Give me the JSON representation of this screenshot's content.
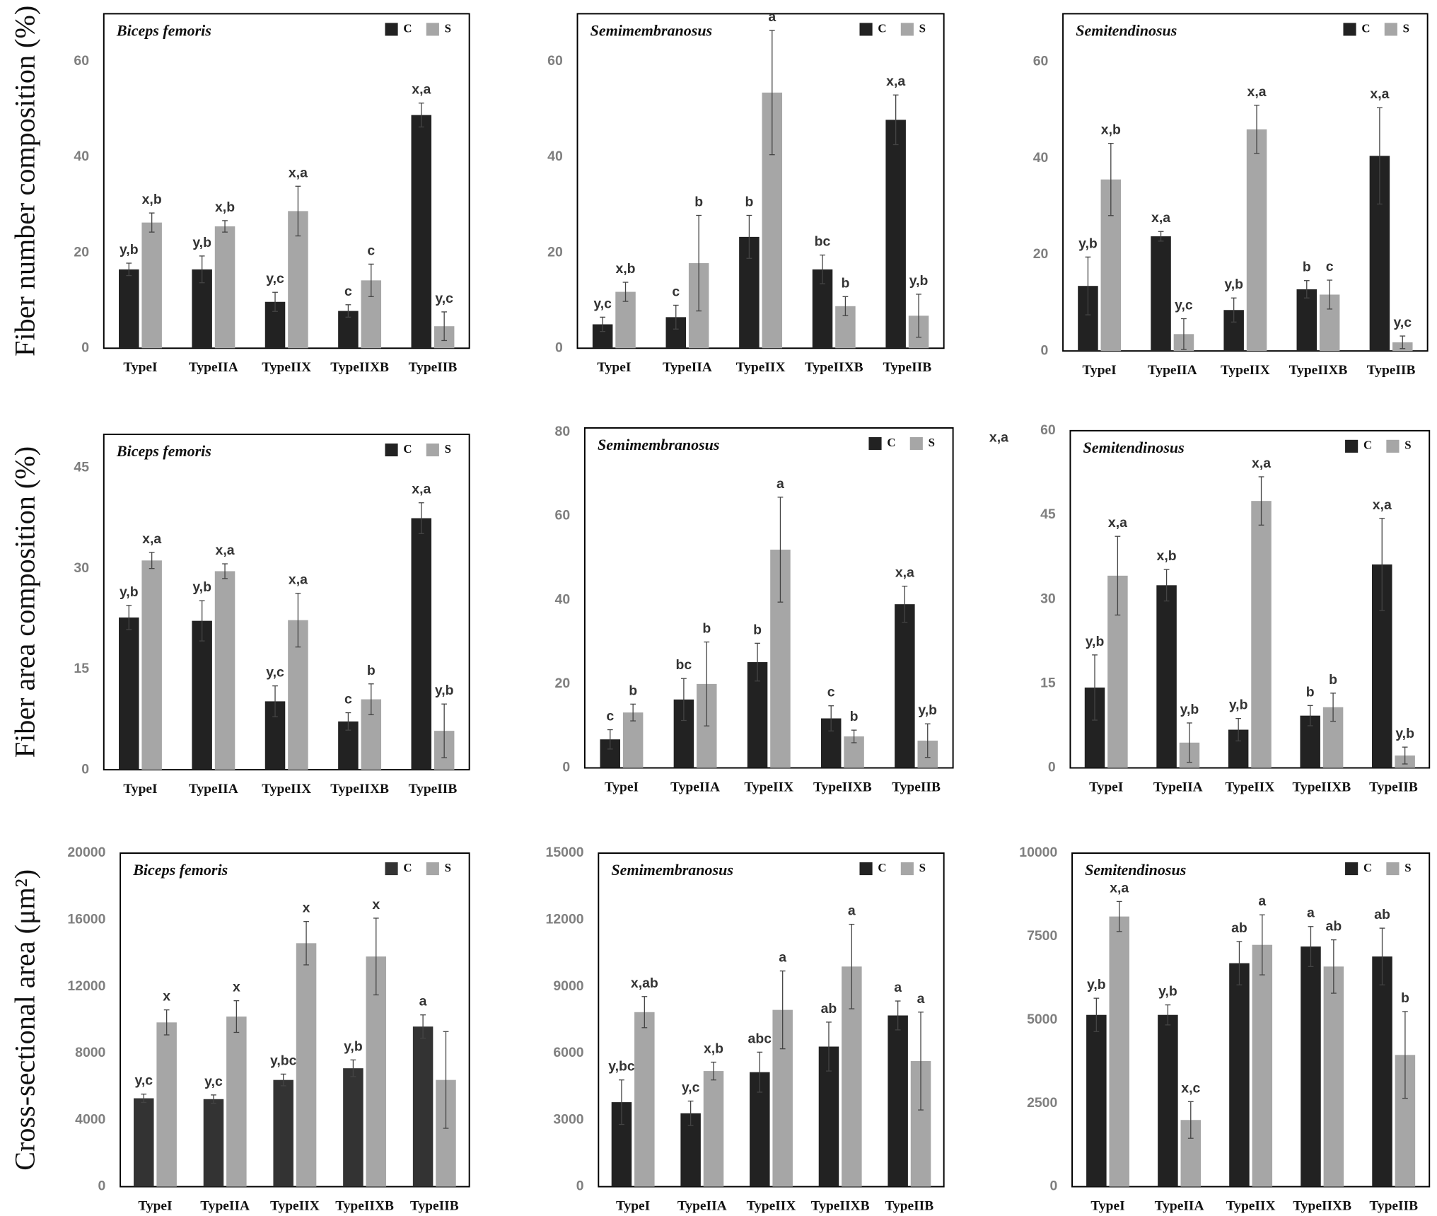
{
  "chart_data": [
    {
      "type": "bar",
      "title": "Biceps femoris",
      "ylabel": "Fiber number composition (%)",
      "categories": [
        "TypeI",
        "TypeIIA",
        "TypeIIX",
        "TypeIIXB",
        "TypeIIB"
      ],
      "ylim": [
        0,
        70
      ],
      "yticks": [
        0,
        20,
        40,
        60
      ],
      "series": [
        {
          "name": "C",
          "color": "#222222",
          "values": [
            16.5,
            16.5,
            9.7,
            7.8,
            48.8
          ],
          "errors": [
            1.3,
            2.8,
            2.0,
            1.3,
            2.5
          ],
          "labels": [
            "y,b",
            "y,b",
            "y,c",
            "c",
            "x,a"
          ]
        },
        {
          "name": "S",
          "color": "#a6a6a6",
          "values": [
            26.3,
            25.5,
            28.7,
            14.2,
            4.6
          ],
          "errors": [
            2.0,
            1.2,
            5.2,
            3.4,
            3.0
          ],
          "labels": [
            "x,b",
            "x,b",
            "x,a",
            "c",
            "y,c"
          ]
        }
      ]
    },
    {
      "type": "bar",
      "title": "Semimembranosus",
      "categories": [
        "TypeI",
        "TypeIIA",
        "TypeIIX",
        "TypeIIXB",
        "TypeIIB"
      ],
      "ylim": [
        0,
        70
      ],
      "yticks": [
        0,
        20,
        40,
        60
      ],
      "series": [
        {
          "name": "C",
          "color": "#222222",
          "values": [
            5.0,
            6.5,
            23.3,
            16.5,
            47.8
          ],
          "errors": [
            1.5,
            2.5,
            4.5,
            3.0,
            5.2
          ],
          "labels": [
            "y,c",
            "c",
            "b",
            "bc",
            "x,a"
          ]
        },
        {
          "name": "S",
          "color": "#a6a6a6",
          "values": [
            11.8,
            17.8,
            53.5,
            8.8,
            6.8
          ],
          "errors": [
            2.0,
            10.0,
            13.0,
            2.0,
            4.5
          ],
          "labels": [
            "x,b",
            "b",
            "a",
            "b",
            "y,b"
          ]
        }
      ]
    },
    {
      "type": "bar",
      "title": "Semitendinosus",
      "categories": [
        "TypeI",
        "TypeIIA",
        "TypeIIX",
        "TypeIIXB",
        "TypeIIB"
      ],
      "ylim": [
        0,
        70
      ],
      "yticks": [
        0,
        20,
        40,
        60
      ],
      "series": [
        {
          "name": "C",
          "color": "#222222",
          "values": [
            13.5,
            23.8,
            8.5,
            12.8,
            40.5
          ],
          "errors": [
            6.0,
            1.0,
            2.5,
            1.8,
            10.0
          ],
          "labels": [
            "y,b",
            "x,a",
            "y,b",
            "b",
            "x,a"
          ]
        },
        {
          "name": "S",
          "color": "#a6a6a6",
          "values": [
            35.6,
            3.5,
            46.0,
            11.7,
            1.8
          ],
          "errors": [
            7.5,
            3.2,
            5.0,
            3.0,
            1.3
          ],
          "labels": [
            "x,b",
            "y,c",
            "x,a",
            "c",
            "y,c"
          ]
        }
      ]
    },
    {
      "type": "bar",
      "title": "Biceps femoris",
      "ylabel": "Fiber area composition (%)",
      "categories": [
        "TypeI",
        "TypeIIA",
        "TypeIIX",
        "TypeIIXB",
        "TypeIIB"
      ],
      "ylim": [
        0,
        50
      ],
      "yticks": [
        0,
        15,
        30,
        45
      ],
      "series": [
        {
          "name": "C",
          "color": "#222222",
          "values": [
            22.7,
            22.2,
            10.2,
            7.2,
            37.5
          ],
          "errors": [
            1.8,
            3.0,
            2.3,
            1.3,
            2.3
          ],
          "labels": [
            "y,b",
            "y,b",
            "y,c",
            "c",
            "x,a"
          ]
        },
        {
          "name": "S",
          "color": "#a6a6a6",
          "values": [
            31.2,
            29.6,
            22.3,
            10.5,
            5.8
          ],
          "errors": [
            1.2,
            1.1,
            4.0,
            2.3,
            4.0
          ],
          "labels": [
            "x,a",
            "x,a",
            "x,a",
            "b",
            "y,b"
          ]
        }
      ]
    },
    {
      "type": "bar",
      "title": "Semimembranosus",
      "extra_text": "x,a",
      "categories": [
        "TypeI",
        "TypeIIA",
        "TypeIIX",
        "TypeIIXB",
        "TypeIIB"
      ],
      "ylim": [
        0,
        81
      ],
      "yticks": [
        0,
        20,
        40,
        60,
        80
      ],
      "series": [
        {
          "name": "C",
          "color": "#222222",
          "values": [
            6.8,
            16.3,
            25.2,
            11.8,
            39.0
          ],
          "errors": [
            2.3,
            5.0,
            4.5,
            3.0,
            4.3
          ],
          "labels": [
            "c",
            "bc",
            "b",
            "c",
            "x,a"
          ]
        },
        {
          "name": "S",
          "color": "#a6a6a6",
          "values": [
            13.2,
            20.0,
            52.0,
            7.5,
            6.5
          ],
          "errors": [
            2.0,
            10.0,
            12.5,
            1.5,
            4.0
          ],
          "labels": [
            "b",
            "b",
            "a",
            "b",
            "y,b"
          ]
        }
      ]
    },
    {
      "type": "bar",
      "title": "Semitendinosus",
      "categories": [
        "TypeI",
        "TypeIIA",
        "TypeIIX",
        "TypeIIXB",
        "TypeIIB"
      ],
      "ylim": [
        0,
        60
      ],
      "yticks": [
        0,
        15,
        30,
        45,
        60
      ],
      "series": [
        {
          "name": "C",
          "color": "#222222",
          "values": [
            14.3,
            32.5,
            6.8,
            9.3,
            36.2
          ],
          "errors": [
            5.8,
            2.8,
            2.0,
            1.8,
            8.2
          ],
          "labels": [
            "y,b",
            "x,b",
            "y,b",
            "b",
            "x,a"
          ]
        },
        {
          "name": "S",
          "color": "#a6a6a6",
          "values": [
            34.2,
            4.5,
            47.5,
            10.8,
            2.2
          ],
          "errors": [
            7.0,
            3.5,
            4.3,
            2.5,
            1.5
          ],
          "labels": [
            "x,a",
            "y,b",
            "x,a",
            "b",
            "y,b"
          ]
        }
      ]
    },
    {
      "type": "bar",
      "title": "Biceps femoris",
      "ylabel": "Cross-sectional area (μm²)",
      "categories": [
        "TypeI",
        "TypeIIA",
        "TypeIIX",
        "TypeIIXB",
        "TypeIIB"
      ],
      "ylim": [
        0,
        20000
      ],
      "yticks": [
        0,
        4000,
        8000,
        12000,
        16000,
        20000
      ],
      "series": [
        {
          "name": "C",
          "color": "#333333",
          "values": [
            5300,
            5250,
            6400,
            7100,
            9600
          ],
          "errors": [
            250,
            250,
            350,
            500,
            700
          ],
          "labels": [
            "y,c",
            "y,c",
            "y,bc",
            "y,b",
            "a"
          ]
        },
        {
          "name": "S",
          "color": "#a6a6a6",
          "values": [
            9850,
            10200,
            14600,
            13800,
            6400
          ],
          "errors": [
            750,
            950,
            1300,
            2300,
            2900
          ],
          "labels": [
            "x",
            "x",
            "x",
            "x",
            null
          ]
        }
      ]
    },
    {
      "type": "bar",
      "title": "Semimembranosus",
      "categories": [
        "TypeI",
        "TypeIIA",
        "TypeIIX",
        "TypeIIXB",
        "TypeIIB"
      ],
      "ylim": [
        0,
        15000
      ],
      "yticks": [
        0,
        3000,
        6000,
        9000,
        12000,
        15000
      ],
      "series": [
        {
          "name": "C",
          "color": "#222222",
          "values": [
            3800,
            3300,
            5150,
            6300,
            7700
          ],
          "errors": [
            1000,
            550,
            900,
            1100,
            650
          ],
          "labels": [
            "y,bc",
            "y,c",
            "abc",
            "ab",
            "a"
          ]
        },
        {
          "name": "S",
          "color": "#a6a6a6",
          "values": [
            7850,
            5200,
            7950,
            9900,
            5650
          ],
          "errors": [
            700,
            400,
            1750,
            1900,
            2200
          ],
          "labels": [
            "x,ab",
            "x,b",
            "a",
            "a",
            "a"
          ]
        }
      ]
    },
    {
      "type": "bar",
      "title": "Semitendinosus",
      "categories": [
        "TypeI",
        "TypeIIA",
        "TypeIIX",
        "TypeIIXB",
        "TypeIIB"
      ],
      "ylim": [
        0,
        10000
      ],
      "yticks": [
        0,
        2500,
        5000,
        7500,
        10000
      ],
      "series": [
        {
          "name": "C",
          "color": "#222222",
          "values": [
            5150,
            5150,
            6700,
            7200,
            6900
          ],
          "errors": [
            500,
            300,
            650,
            600,
            850
          ],
          "labels": [
            "y,b",
            "y,b",
            "ab",
            "a",
            "ab"
          ]
        },
        {
          "name": "S",
          "color": "#a6a6a6",
          "values": [
            8100,
            2000,
            7250,
            6600,
            3950
          ],
          "errors": [
            450,
            550,
            900,
            800,
            1300
          ],
          "labels": [
            "x,a",
            "x,c",
            "a",
            "ab",
            "b"
          ]
        }
      ]
    }
  ]
}
